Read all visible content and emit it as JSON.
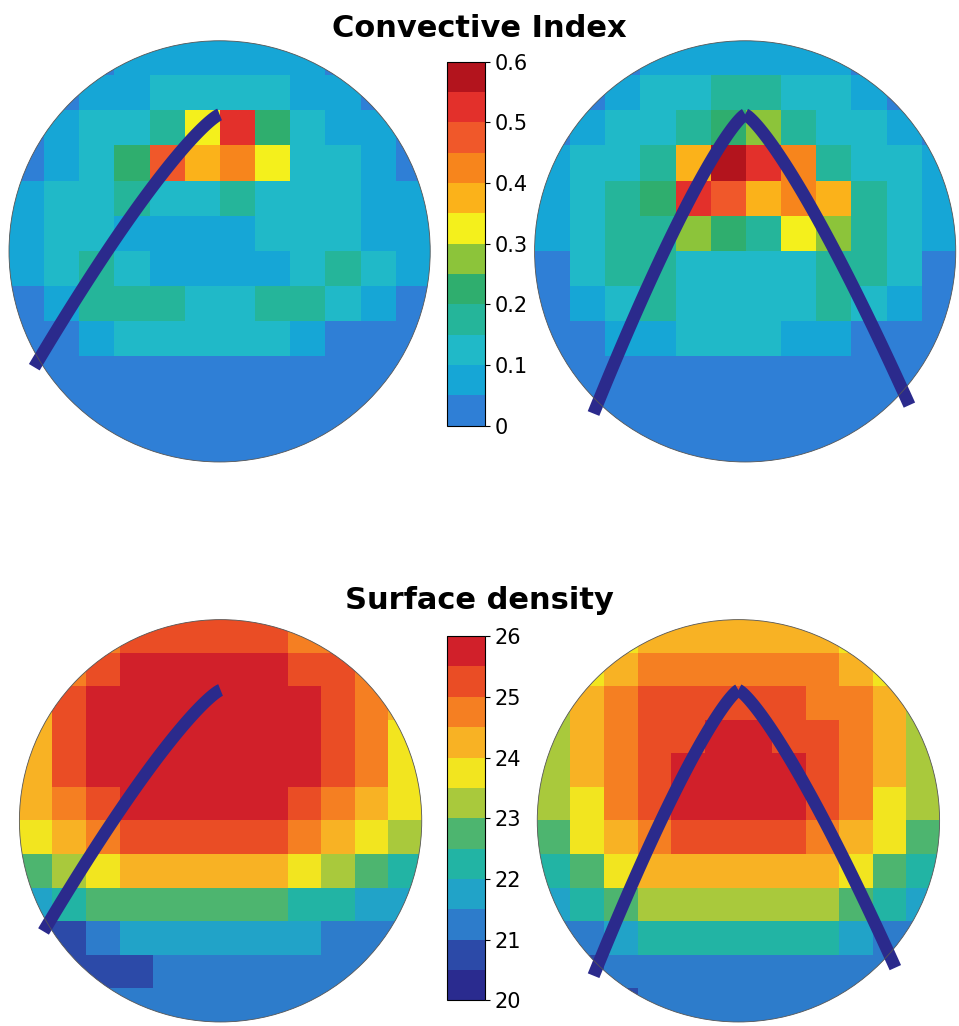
{
  "chart_data": [
    {
      "type": "heatmap",
      "title": "Convective Index",
      "colorbar": {
        "range": [
          0,
          0.6
        ],
        "ticks": [
          0,
          0.1,
          0.2,
          0.3,
          0.4,
          0.5,
          0.6
        ]
      },
      "maps": [
        [
          [
            null,
            null,
            0.03,
            0.05,
            0.05,
            0.05,
            0.05,
            0.05,
            0.05,
            0.03,
            null,
            null
          ],
          [
            null,
            0.03,
            0.05,
            0.08,
            0.1,
            0.1,
            0.1,
            0.1,
            0.08,
            0.05,
            0.03,
            null
          ],
          [
            0.03,
            0.05,
            0.1,
            0.12,
            0.15,
            0.3,
            0.5,
            0.2,
            0.1,
            0.08,
            0.05,
            0.03
          ],
          [
            0.03,
            0.08,
            0.12,
            0.2,
            0.45,
            0.35,
            0.4,
            0.3,
            0.12,
            0.1,
            0.05,
            0.03
          ],
          [
            0.05,
            0.1,
            0.12,
            0.15,
            0.12,
            0.1,
            0.15,
            0.12,
            0.1,
            0.1,
            0.08,
            0.05
          ],
          [
            0.05,
            0.12,
            0.1,
            0.08,
            0.05,
            0.05,
            0.08,
            0.1,
            0.12,
            0.1,
            0.08,
            0.05
          ],
          [
            0.05,
            0.12,
            0.15,
            0.1,
            0.08,
            0.05,
            0.05,
            0.08,
            0.12,
            0.15,
            0.1,
            0.05
          ],
          [
            0.03,
            0.08,
            0.15,
            0.18,
            0.15,
            0.12,
            0.12,
            0.15,
            0.15,
            0.12,
            0.08,
            0.03
          ],
          [
            0.02,
            0.03,
            0.05,
            0.1,
            0.12,
            0.12,
            0.12,
            0.1,
            0.05,
            0.03,
            0.02,
            0.02
          ],
          [
            0.02,
            0.02,
            0.02,
            0.02,
            0.02,
            0.02,
            0.02,
            0.02,
            0.02,
            0.02,
            0.02,
            0.02
          ],
          [
            null,
            0.02,
            0.02,
            0.02,
            0.02,
            0.02,
            0.02,
            0.02,
            0.02,
            0.02,
            0.02,
            null
          ],
          [
            null,
            null,
            0.02,
            0.02,
            0.02,
            0.02,
            0.02,
            0.02,
            0.02,
            0.02,
            null,
            null
          ]
        ],
        [
          [
            null,
            null,
            0.03,
            0.05,
            0.05,
            0.05,
            0.05,
            0.05,
            0.05,
            0.03,
            null,
            null
          ],
          [
            null,
            0.03,
            0.08,
            0.1,
            0.1,
            0.15,
            0.15,
            0.1,
            0.1,
            0.08,
            0.03,
            null
          ],
          [
            0.03,
            0.08,
            0.1,
            0.12,
            0.15,
            0.2,
            0.25,
            0.15,
            0.12,
            0.1,
            0.08,
            0.03
          ],
          [
            0.05,
            0.1,
            0.12,
            0.15,
            0.35,
            0.55,
            0.5,
            0.4,
            0.15,
            0.12,
            0.1,
            0.05
          ],
          [
            0.05,
            0.1,
            0.15,
            0.2,
            0.5,
            0.45,
            0.35,
            0.4,
            0.35,
            0.15,
            0.1,
            0.05
          ],
          [
            0.05,
            0.12,
            0.15,
            0.15,
            0.25,
            0.2,
            0.15,
            0.3,
            0.25,
            0.15,
            0.12,
            0.05
          ],
          [
            0.03,
            0.1,
            0.15,
            0.15,
            0.12,
            0.1,
            0.1,
            0.12,
            0.15,
            0.15,
            0.1,
            0.03
          ],
          [
            0.03,
            0.05,
            0.1,
            0.15,
            0.12,
            0.1,
            0.1,
            0.12,
            0.15,
            0.1,
            0.05,
            0.03
          ],
          [
            0.02,
            0.03,
            0.05,
            0.08,
            0.1,
            0.1,
            0.1,
            0.08,
            0.05,
            0.03,
            0.02,
            0.02
          ],
          [
            0.02,
            0.02,
            0.02,
            0.02,
            0.02,
            0.02,
            0.02,
            0.02,
            0.02,
            0.02,
            0.02,
            0.02
          ],
          [
            null,
            0.02,
            0.02,
            0.02,
            0.02,
            0.02,
            0.02,
            0.02,
            0.02,
            0.02,
            0.02,
            null
          ],
          [
            null,
            null,
            0.02,
            0.02,
            0.02,
            0.02,
            0.02,
            0.02,
            0.02,
            0.02,
            null,
            null
          ]
        ]
      ]
    },
    {
      "type": "heatmap",
      "title": "Surface density",
      "colorbar": {
        "range": [
          20,
          26
        ],
        "ticks": [
          20,
          21,
          22,
          23,
          24,
          25,
          26
        ]
      },
      "maps": [
        [
          [
            null,
            null,
            24.5,
            25,
            25,
            25,
            25,
            25,
            24.5,
            24.5,
            null,
            null
          ],
          [
            null,
            24.5,
            25,
            25.5,
            25.5,
            25.5,
            25.5,
            25.5,
            25,
            25,
            24.5,
            null
          ],
          [
            24,
            25,
            25.5,
            25.5,
            26,
            26,
            26,
            25.5,
            25.5,
            25,
            24.5,
            24
          ],
          [
            24,
            25,
            25.5,
            26,
            26,
            26,
            26,
            26,
            25.5,
            25,
            24.5,
            23.5
          ],
          [
            24,
            25,
            25.5,
            25.5,
            26,
            26,
            26,
            25.5,
            25.5,
            25,
            24.5,
            23.5
          ],
          [
            24,
            24.5,
            25,
            25.5,
            25.5,
            25.5,
            25.5,
            25.5,
            25,
            24.5,
            24,
            23.5
          ],
          [
            23.5,
            24,
            24.5,
            25,
            25,
            25,
            25,
            25,
            24.5,
            24,
            23.5,
            23
          ],
          [
            22.5,
            23,
            23.5,
            24,
            24,
            24,
            24,
            24,
            23.5,
            23,
            22.5,
            22
          ],
          [
            21.5,
            22,
            22.5,
            22.5,
            22.5,
            22.5,
            22.5,
            22.5,
            22,
            22,
            21.5,
            21.5
          ],
          [
            20.5,
            20.5,
            21,
            21.5,
            21.5,
            21.5,
            21.5,
            21.5,
            21.5,
            21,
            21,
            21
          ],
          [
            null,
            20.5,
            20.5,
            20.5,
            21,
            21,
            21,
            21,
            21,
            21,
            21,
            null
          ],
          [
            null,
            null,
            21,
            21,
            21,
            21,
            21,
            21,
            21,
            21,
            null,
            null
          ]
        ],
        [
          [
            null,
            null,
            23.5,
            24,
            24,
            24,
            24,
            24,
            24,
            23.5,
            null,
            null
          ],
          [
            null,
            23.5,
            24,
            24.5,
            24.5,
            24.5,
            24.5,
            24.5,
            24.5,
            24,
            23.5,
            null
          ],
          [
            23,
            24,
            24.5,
            25,
            25,
            25,
            25,
            25,
            24.5,
            24.5,
            24,
            23
          ],
          [
            23,
            24,
            24.5,
            25,
            25,
            25.5,
            25.5,
            25,
            25,
            24.5,
            24,
            23
          ],
          [
            23,
            24,
            24.5,
            25,
            25.5,
            26,
            26,
            25.5,
            25,
            24.5,
            24,
            23
          ],
          [
            23,
            23.5,
            24.5,
            25,
            25.5,
            25.5,
            25.5,
            25.5,
            25,
            24.5,
            23.5,
            23
          ],
          [
            22.5,
            23.5,
            24,
            24.5,
            25,
            25,
            25,
            25,
            24.5,
            24,
            23.5,
            22.5
          ],
          [
            22,
            22.5,
            23.5,
            24,
            24,
            24,
            24,
            24,
            24,
            23.5,
            22.5,
            22
          ],
          [
            21.5,
            22,
            22.5,
            23,
            23,
            23,
            23,
            23,
            23,
            22.5,
            22,
            21.5
          ],
          [
            21,
            21,
            21.5,
            22,
            22,
            22,
            22,
            22,
            22,
            21.5,
            21,
            21
          ],
          [
            null,
            20.5,
            21,
            21,
            21,
            21,
            21,
            21,
            21,
            21,
            21,
            null
          ],
          [
            null,
            null,
            20.5,
            21,
            21,
            21,
            21,
            21,
            21,
            21,
            null,
            null
          ]
        ]
      ]
    }
  ]
}
